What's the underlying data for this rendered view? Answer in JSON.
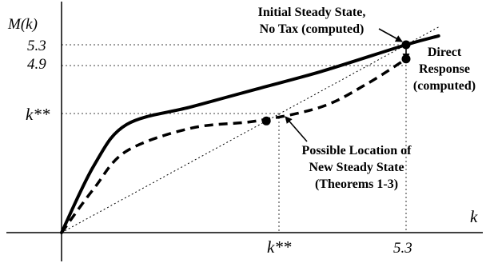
{
  "chart_data": {
    "type": "line",
    "ylabel": "M(k)",
    "xlabel": "k",
    "x_ticks": [
      "k**",
      "5.3"
    ],
    "y_ticks": [
      "5.3",
      "4.9",
      "k**"
    ],
    "series": [
      {
        "style": "solid",
        "points": [
          [
            0.0,
            0.0
          ],
          [
            0.5,
            1.9
          ],
          [
            1.0,
            3.05
          ],
          [
            2.0,
            3.55
          ],
          [
            3.0,
            4.05
          ],
          [
            4.0,
            4.55
          ],
          [
            5.3,
            5.3
          ],
          [
            5.8,
            5.55
          ]
        ]
      },
      {
        "style": "dashed",
        "points": [
          [
            0.0,
            0.0
          ],
          [
            0.5,
            1.25
          ],
          [
            1.0,
            2.3
          ],
          [
            2.0,
            2.95
          ],
          [
            3.0,
            3.15
          ],
          [
            4.0,
            3.55
          ],
          [
            4.7,
            4.2
          ],
          [
            5.3,
            4.9
          ]
        ]
      },
      {
        "style": "dotted-45-degree-line",
        "points": [
          [
            0.0,
            0.0
          ],
          [
            5.8,
            5.8
          ]
        ]
      }
    ],
    "highlight_points": [
      [
        5.3,
        5.3
      ],
      [
        5.3,
        4.9
      ],
      [
        3.15,
        3.15
      ]
    ],
    "annotations": [
      {
        "id": "initial",
        "lines": [
          "Initial Steady State,",
          "No Tax (computed)"
        ]
      },
      {
        "id": "direct",
        "lines": [
          "Direct",
          "Response",
          "(computed)"
        ]
      },
      {
        "id": "possible",
        "lines": [
          "Possible Location of",
          "New Steady State",
          "(Theorems 1-3)"
        ]
      }
    ]
  }
}
